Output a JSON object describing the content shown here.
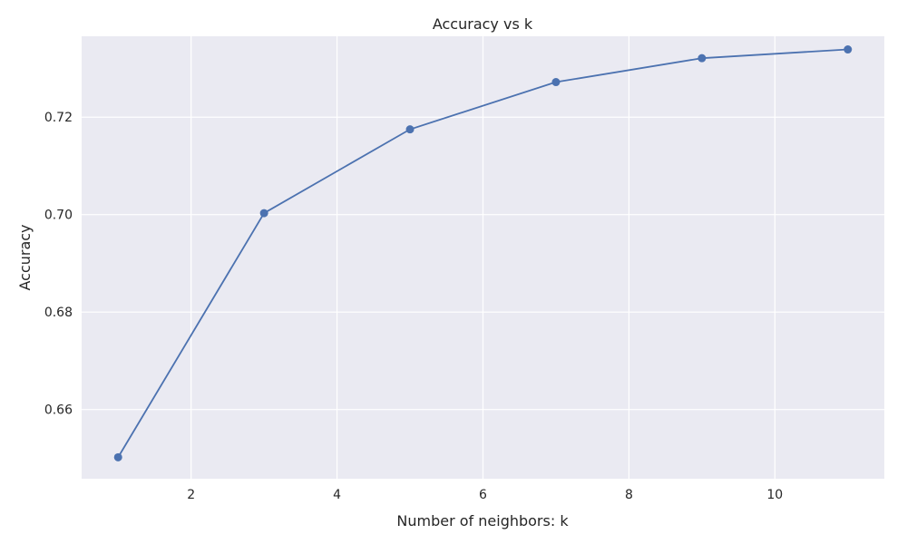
{
  "chart_data": {
    "type": "line",
    "title": "Accuracy vs k",
    "xlabel": "Number of neighbors: k",
    "ylabel": "Accuracy",
    "x": [
      1,
      3,
      5,
      7,
      9,
      11
    ],
    "series": [
      {
        "values": [
          0.6502,
          0.7003,
          0.7175,
          0.7272,
          0.7321,
          0.7339
        ]
      }
    ],
    "xticks": [
      2,
      4,
      6,
      8,
      10
    ],
    "yticks": [
      0.66,
      0.68,
      0.7,
      0.72
    ],
    "xtick_labels": [
      "2",
      "4",
      "6",
      "8",
      "10"
    ],
    "ytick_labels": [
      "0.66",
      "0.68",
      "0.70",
      "0.72"
    ],
    "xlim": [
      0.5,
      11.5
    ],
    "ylim": [
      0.6458,
      0.7366
    ],
    "grid": true,
    "marker": "circle",
    "colors": {
      "line": "#4c72b0",
      "background": "#eaeaf2",
      "grid": "#ffffff"
    }
  }
}
